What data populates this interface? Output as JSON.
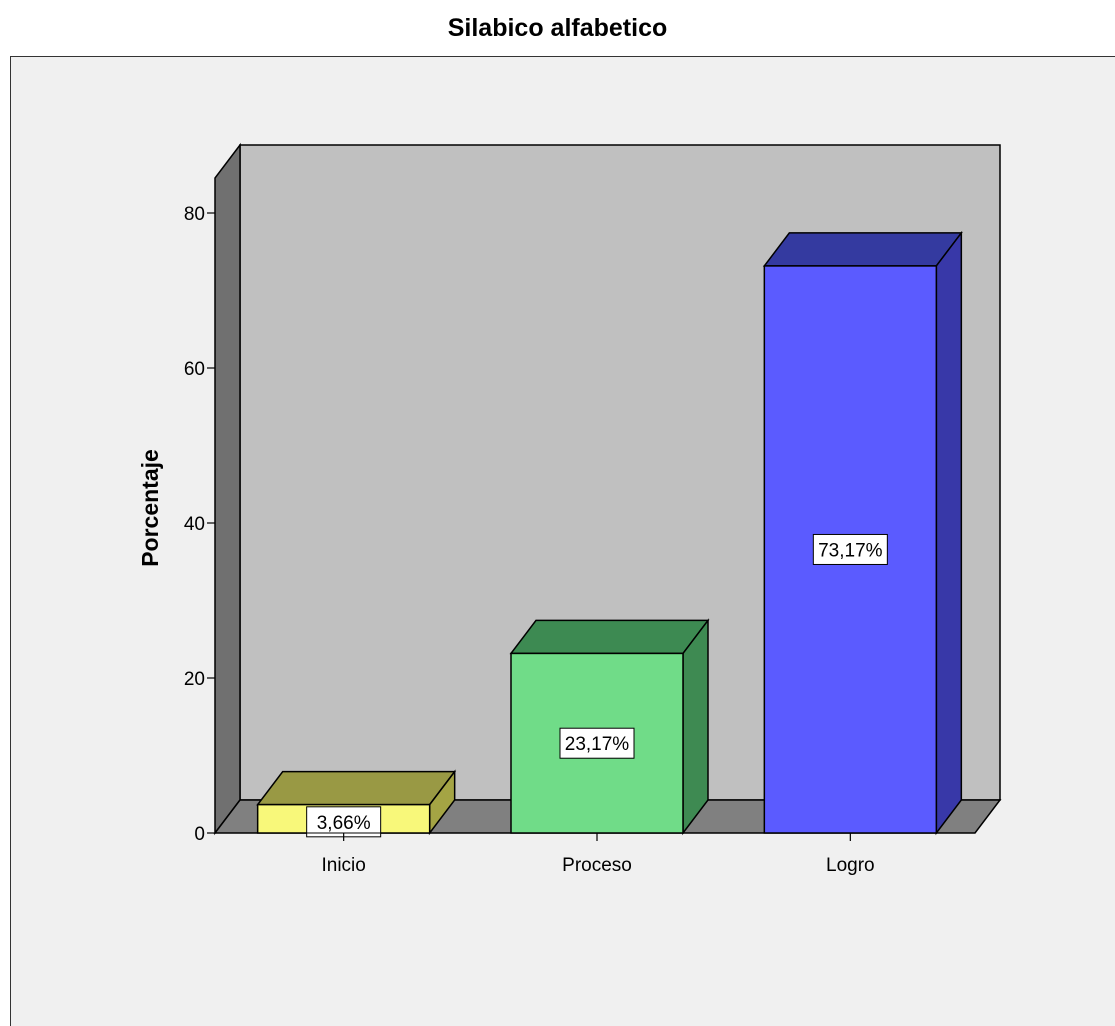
{
  "chart_data": {
    "type": "bar",
    "title": "Silabico alfabetico",
    "ylabel": "Porcentaje",
    "xlabel": "",
    "categories": [
      "Inicio",
      "Proceso",
      "Logro"
    ],
    "values": [
      3.66,
      23.17,
      73.17
    ],
    "data_labels": [
      "3,66%",
      "23,17%",
      "73,17%"
    ],
    "ylim": [
      0,
      80
    ],
    "yticks": [
      0,
      20,
      40,
      60,
      80
    ],
    "colors": {
      "front": [
        "#f8f87a",
        "#70dc88",
        "#5b5bff"
      ],
      "top": [
        "#999944",
        "#3d8a52",
        "#343aa0"
      ],
      "side": [
        "#a4a444",
        "#3e8a52",
        "#3838a8"
      ],
      "wall": "#c0c0c0",
      "floor": "#808080",
      "leftwall": "#707070",
      "frame": "#f0f0f0"
    },
    "style": "3d-bar",
    "grid": false
  }
}
